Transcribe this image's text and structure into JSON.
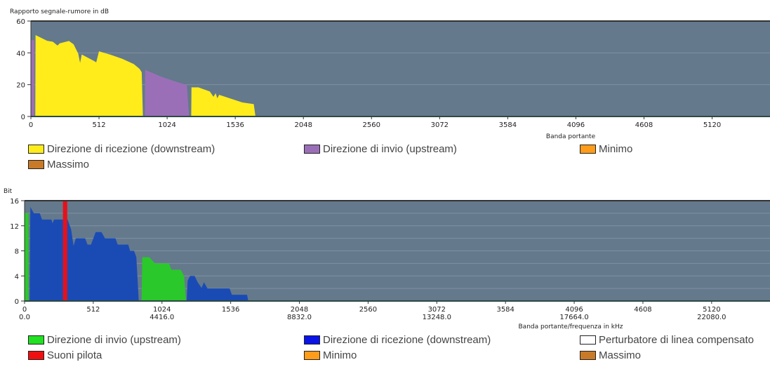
{
  "chart_data": [
    {
      "type": "area",
      "title": "Rapporto segnale-rumore in dB",
      "ylabel": "Rapporto segnale-rumore in dB",
      "xlabel": "Banda portante",
      "xlim": [
        0,
        5555
      ],
      "ylim": [
        0,
        60
      ],
      "yticks": [
        "0",
        "20",
        "40",
        "60"
      ],
      "xticks": [
        "0",
        "512",
        "1024",
        "1536",
        "2048",
        "2560",
        "3072",
        "3584",
        "4096",
        "4608",
        "5120"
      ],
      "background": "#64798c",
      "grid": true,
      "series": [
        {
          "name": "Direzione di invio (upstream)",
          "color": "#9b6fb8",
          "points": [
            [
              0,
              0
            ],
            [
              1,
              48
            ],
            [
              26,
              48
            ],
            [
              27,
              0
            ]
          ]
        },
        {
          "name": "Direzione di ricezione (downstream)",
          "color": "#ffec1a",
          "points": [
            [
              33,
              0
            ],
            [
              35,
              51.2
            ],
            [
              122,
              47.6
            ],
            [
              165,
              47
            ],
            [
              200,
              44.6
            ],
            [
              217,
              46
            ],
            [
              286,
              47.5
            ],
            [
              321,
              45.4
            ],
            [
              356,
              39.5
            ],
            [
              370,
              33.7
            ],
            [
              382,
              39
            ],
            [
              477,
              34.8
            ],
            [
              491,
              34
            ],
            [
              512,
              41
            ],
            [
              599,
              38.8
            ],
            [
              686,
              36.3
            ],
            [
              773,
              33
            ],
            [
              816,
              30
            ],
            [
              833,
              27.8
            ],
            [
              842,
              0
            ]
          ]
        },
        {
          "name": "Direzione di invio (upstream)",
          "color": "#9b6fb8",
          "points": [
            [
              857,
              0
            ],
            [
              859,
              29.3
            ],
            [
              981,
              25
            ],
            [
              1085,
              22
            ],
            [
              1172,
              19.8
            ],
            [
              1189,
              0
            ]
          ]
        },
        {
          "name": "Direzione di ricezione (downstream)",
          "color": "#ffec1a",
          "points": [
            [
              1205,
              0
            ],
            [
              1207,
              18.3
            ],
            [
              1259,
              18.3
            ],
            [
              1345,
              15.7
            ],
            [
              1372,
              12.4
            ],
            [
              1389,
              14.6
            ],
            [
              1401,
              11.4
            ],
            [
              1415,
              13.6
            ],
            [
              1589,
              8.8
            ],
            [
              1675,
              7.8
            ],
            [
              1688,
              0
            ]
          ]
        }
      ],
      "legend": [
        {
          "label": "Direzione di ricezione (downstream)",
          "color": "#ffec1a"
        },
        {
          "label": "Direzione di invio (upstream)",
          "color": "#9b6fb8"
        },
        {
          "label": "Minimo",
          "color": "#ff9c1a"
        },
        {
          "label": "Massimo",
          "color": "#c87a28"
        }
      ]
    },
    {
      "type": "area",
      "title": "Bit",
      "ylabel": "Bit",
      "xlabel": "Banda portante/frequenza in kHz",
      "xlim": [
        0,
        5555
      ],
      "ylim": [
        0,
        16
      ],
      "yticks": [
        "0",
        "4",
        "8",
        "12",
        "16"
      ],
      "xticks": [
        "0",
        "512",
        "1024",
        "1536",
        "2048",
        "2560",
        "3072",
        "3584",
        "4096",
        "4608",
        "5120"
      ],
      "xticks_freq": [
        "0.0",
        "",
        "4416.0",
        "",
        "8832.0",
        "",
        "13248.0",
        "",
        "17664.0",
        "",
        "22080.0"
      ],
      "background": "#64798c",
      "grid": true,
      "series": [
        {
          "name": "Direzione di invio (upstream)",
          "color": "#2ac82a",
          "points": [
            [
              0,
              0
            ],
            [
              0,
              14
            ],
            [
              30,
              14
            ],
            [
              30,
              0
            ]
          ]
        },
        {
          "name": "Direzione di ricezione (downstream)",
          "color": "#1a4bb5",
          "points": [
            [
              38,
              0
            ],
            [
              43,
              15
            ],
            [
              69,
              14
            ],
            [
              113,
              14
            ],
            [
              130,
              13
            ],
            [
              200,
              13
            ],
            [
              208,
              12.4
            ],
            [
              220,
              13
            ],
            [
              321,
              13
            ],
            [
              347,
              11.4
            ],
            [
              365,
              8.8
            ],
            [
              382,
              10
            ],
            [
              451,
              10
            ],
            [
              469,
              9
            ],
            [
              495,
              9
            ],
            [
              530,
              11
            ],
            [
              573,
              11
            ],
            [
              599,
              10
            ],
            [
              677,
              10
            ],
            [
              694,
              9
            ],
            [
              773,
              9
            ],
            [
              786,
              8
            ],
            [
              816,
              8
            ],
            [
              833,
              7
            ],
            [
              851,
              0
            ]
          ]
        },
        {
          "name": "Direzione di invio (upstream)",
          "color": "#2ac82a",
          "points": [
            [
              872,
              0
            ],
            [
              877,
              7
            ],
            [
              929,
              7
            ],
            [
              972,
              6
            ],
            [
              1076,
              6
            ],
            [
              1094,
              5
            ],
            [
              1163,
              5
            ],
            [
              1189,
              4
            ],
            [
              1203,
              0
            ]
          ]
        },
        {
          "name": "Direzione di ricezione (downstream)",
          "color": "#1a4bb5",
          "points": [
            [
              1208,
              0
            ],
            [
              1215,
              3.2
            ],
            [
              1233,
              4
            ],
            [
              1267,
              4
            ],
            [
              1290,
              3
            ],
            [
              1319,
              2.1
            ],
            [
              1337,
              3
            ],
            [
              1363,
              2
            ],
            [
              1528,
              2
            ],
            [
              1545,
              1
            ],
            [
              1658,
              1
            ],
            [
              1667,
              0
            ]
          ]
        },
        {
          "name": "Suoni pilota",
          "color": "#e8101a",
          "points": [
            [
              286,
              0
            ],
            [
              286,
              16
            ],
            [
              318,
              16
            ],
            [
              318,
              0
            ]
          ]
        }
      ],
      "legend": [
        {
          "label": "Direzione di invio (upstream)",
          "color": "#22e022"
        },
        {
          "label": "Direzione di ricezione (downstream)",
          "color": "#0a14e6"
        },
        {
          "label": "Perturbatore di linea compensato",
          "color": "#ffffff"
        },
        {
          "label": "Suoni pilota",
          "color": "#f01010"
        },
        {
          "label": "Minimo",
          "color": "#ff9c1a"
        },
        {
          "label": "Massimo",
          "color": "#c87a28"
        }
      ]
    }
  ]
}
